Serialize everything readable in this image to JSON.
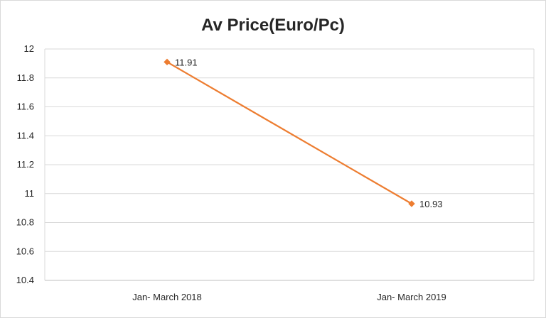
{
  "chart_data": {
    "type": "line",
    "title": "Av Price(Euro/Pc)",
    "categories": [
      "Jan- March 2018",
      "Jan- March 2019"
    ],
    "series": [
      {
        "values": [
          11.91,
          10.93
        ],
        "color": "#ed7d31",
        "data_labels": [
          "11.91",
          "10.93"
        ]
      }
    ],
    "ylim": [
      10.4,
      12
    ],
    "yticks": [
      10.4,
      10.6,
      10.8,
      11,
      11.2,
      11.4,
      11.6,
      11.8,
      12
    ],
    "ytick_labels": [
      "10.4",
      "10.6",
      "10.8",
      "11",
      "11.2",
      "11.4",
      "11.6",
      "11.8",
      "12"
    ],
    "grid": true,
    "legend": "none",
    "marker": "diamond"
  }
}
